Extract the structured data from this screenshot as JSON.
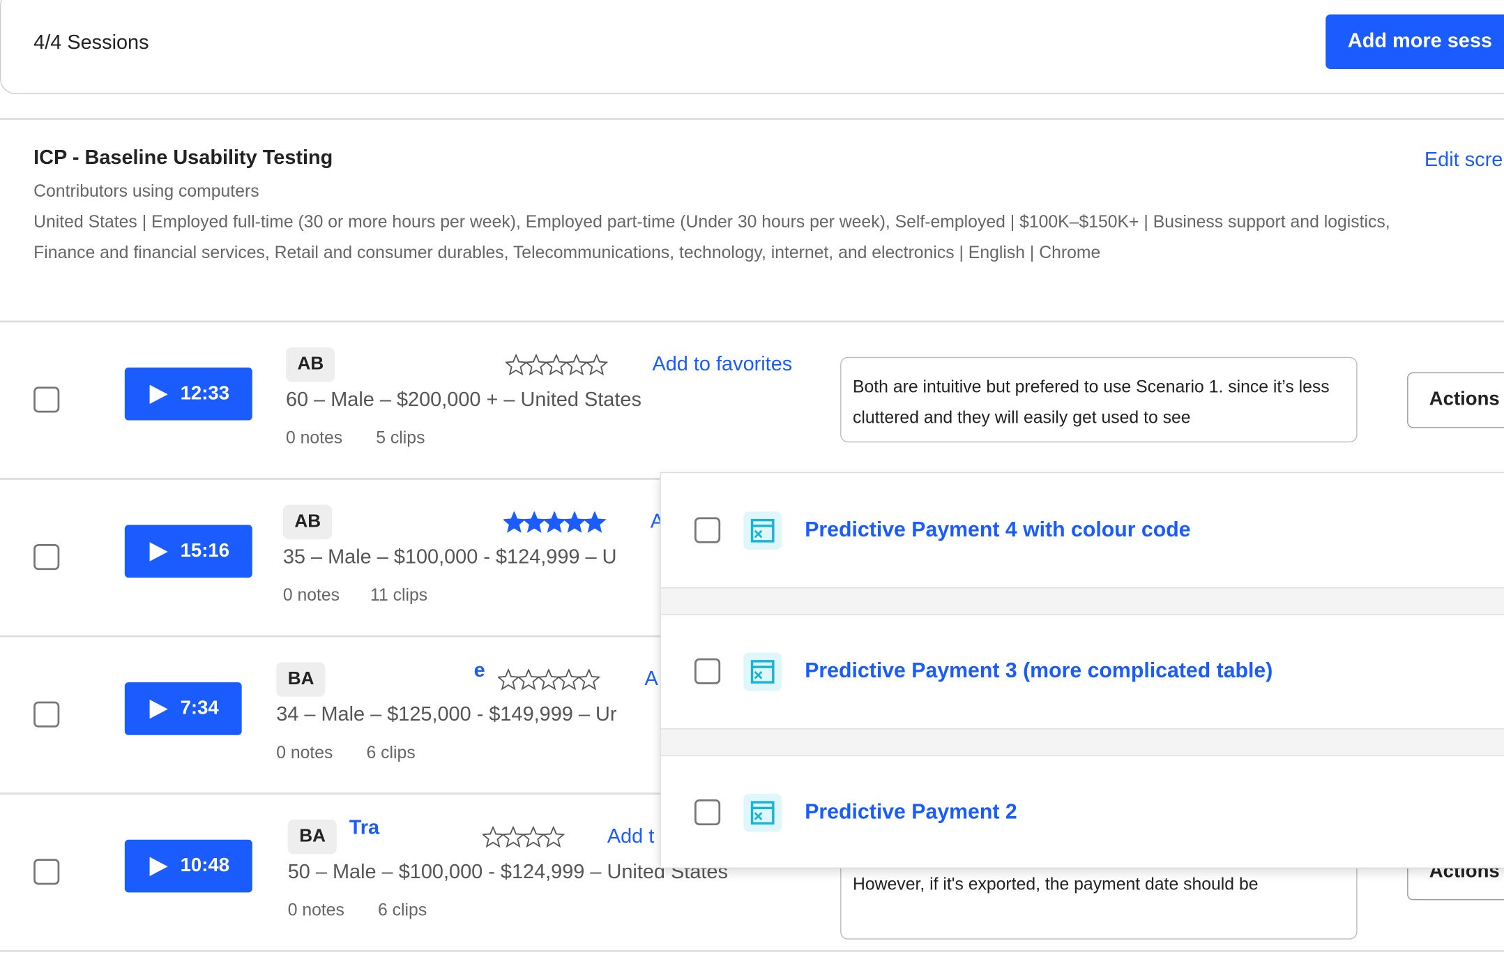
{
  "header": {
    "sessions_count": "4/4 Sessions",
    "add_button": "Add more sess"
  },
  "screener": {
    "title": "ICP - Baseline Usability Testing",
    "subtitle": "Contributors using computers",
    "criteria": "United States | Employed full-time (30 or more hours per week), Employed part-time (Under 30 hours per week), Self-employed | $100K–$150K+ | Business support and logistics, Finance and financial services, Retail and consumer durables, Telecommunications, technology, internet, and electronics | English | Chrome",
    "edit_link": "Edit scre"
  },
  "sessions": [
    {
      "initials": "AB",
      "duration": "12:33",
      "demographics": "60 – Male – $200,000 + – United States",
      "notes": "0 notes",
      "clips": "5 clips",
      "stars": 5,
      "filled": 0,
      "favorites": "Add to favorites",
      "note_text": "Both are intuitive but prefered to use Scenario 1. since it’s less cluttered and they will easily get used to see",
      "actions": "Actions"
    },
    {
      "initials": "AB",
      "duration": "15:16",
      "demographics": "35 – Male – $100,000 - $124,999 – U",
      "notes": "0 notes",
      "clips": "11 clips",
      "stars": 5,
      "filled": 5,
      "favorites": "A"
    },
    {
      "initials": "BA",
      "duration": "7:34",
      "name": "e",
      "demographics": "34 – Male – $125,000 - $149,999 – Ur",
      "notes": "0 notes",
      "clips": "6 clips",
      "stars": 5,
      "filled": 0,
      "favorites": "A"
    },
    {
      "initials": "BA",
      "duration": "10:48",
      "name": "Tra",
      "demographics": "50 – Male – $100,000 - $124,999 – United States",
      "notes": "0 notes",
      "clips": "6 clips",
      "stars": 4,
      "filled": 0,
      "favorites": "Add t",
      "note_text": "However, if it's exported, the payment date should be",
      "actions": "Actions"
    }
  ],
  "dropdown": {
    "items": [
      "Predictive Payment 4 with colour code",
      "Predictive Payment 3 (more complicated table)",
      "Predictive Payment 2"
    ]
  }
}
